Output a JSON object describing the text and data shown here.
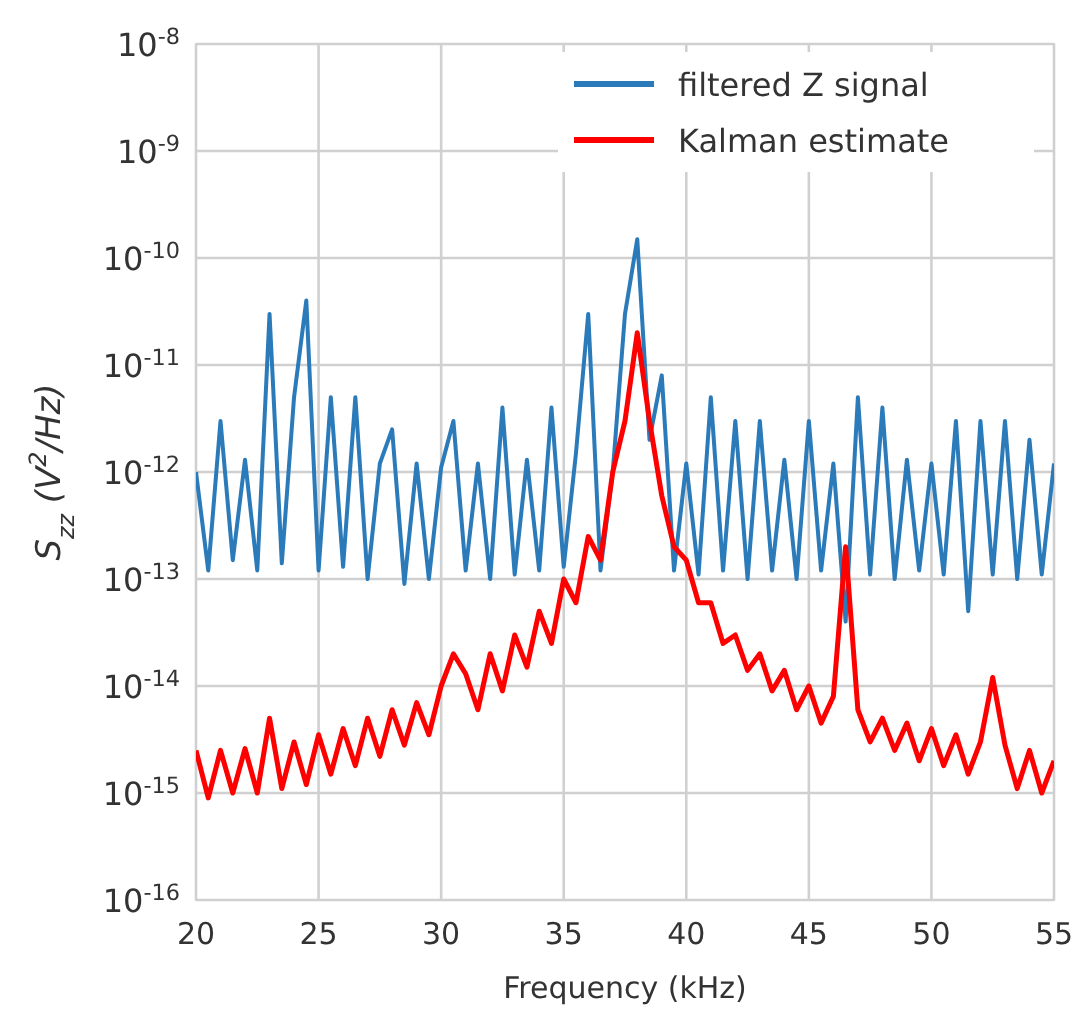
{
  "chart_data": {
    "type": "line",
    "xlabel": "Frequency (kHz)",
    "ylabel": "S$_{zz}$ (V$^{2}$/Hz)",
    "log": "y",
    "grid": true,
    "legend": "top right",
    "line_style": "solid",
    "marker": "none",
    "x": [
      20,
      20.5,
      21,
      21.5,
      22,
      22.5,
      23,
      23.5,
      24,
      24.5,
      25,
      25.5,
      26,
      26.5,
      27,
      27.5,
      28,
      28.5,
      29,
      29.5,
      30,
      30.5,
      31,
      31.5,
      32,
      32.5,
      33,
      33.5,
      34,
      34.5,
      35,
      35.5,
      36,
      36.5,
      37,
      37.5,
      38,
      38.5,
      39,
      39.5,
      40,
      40.5,
      41,
      41.5,
      42,
      42.5,
      43,
      43.5,
      44,
      44.5,
      45,
      45.5,
      46,
      46.5,
      47,
      47.5,
      48,
      48.5,
      49,
      49.5,
      50,
      50.5,
      51,
      51.5,
      52,
      52.5,
      53,
      53.5,
      54,
      54.5,
      55
    ],
    "xlim": [
      20,
      55
    ],
    "xticks": [
      20,
      25,
      30,
      35,
      40,
      45,
      50,
      55
    ],
    "ylim": [
      1e-16,
      1e-08
    ],
    "yticks": [
      {
        "value": 1e-16,
        "label": "10$^{-16}$"
      },
      {
        "value": 1e-15,
        "label": "10$^{-15}$"
      },
      {
        "value": 1e-14,
        "label": "10$^{-14}$"
      },
      {
        "value": 1e-13,
        "label": "10$^{-13}$"
      },
      {
        "value": 1e-12,
        "label": "10$^{-12}$"
      },
      {
        "value": 1e-11,
        "label": "10$^{-11}$"
      },
      {
        "value": 1e-10,
        "label": "10$^{-10}$"
      },
      {
        "value": 1e-09,
        "label": "10$^{-9}$"
      },
      {
        "value": 1e-08,
        "label": "10$^{-8}$"
      }
    ],
    "series": [
      {
        "name": "filtered Z signal",
        "color": "#2b7bba",
        "values": [
          1e-12,
          1.2e-13,
          3e-12,
          1.5e-13,
          1.3e-12,
          1.2e-13,
          3e-11,
          1.4e-13,
          5e-12,
          4e-11,
          1.2e-13,
          5e-12,
          1.3e-13,
          5e-12,
          1e-13,
          1.2e-12,
          2.5e-12,
          9e-14,
          1.2e-12,
          1e-13,
          1.1e-12,
          3e-12,
          1.2e-13,
          1.2e-12,
          1e-13,
          4e-12,
          1.1e-13,
          1.3e-12,
          1.2e-13,
          4e-12,
          1.3e-13,
          1.5e-12,
          3e-11,
          1.2e-13,
          1e-12,
          3e-11,
          1.5e-10,
          2e-12,
          8e-12,
          1.2e-13,
          1.2e-12,
          1.1e-13,
          5e-12,
          1.2e-13,
          3e-12,
          1e-13,
          3e-12,
          1.2e-13,
          1.3e-12,
          1e-13,
          3e-12,
          1.2e-13,
          1.2e-12,
          4e-14,
          5e-12,
          1.1e-13,
          4e-12,
          1e-13,
          1.3e-12,
          1.2e-13,
          1.2e-12,
          1.1e-13,
          3e-12,
          5e-14,
          3e-12,
          1.1e-13,
          3e-12,
          1e-13,
          2e-12,
          1.1e-13,
          1.2e-12
        ]
      },
      {
        "name": "Kalman estimate",
        "color": "#ff0000",
        "values": [
          2.5e-15,
          9e-16,
          2.5e-15,
          1e-15,
          2.6e-15,
          1e-15,
          5e-15,
          1.1e-15,
          3e-15,
          1.2e-15,
          3.5e-15,
          1.5e-15,
          4e-15,
          1.8e-15,
          5e-15,
          2.2e-15,
          6e-15,
          2.8e-15,
          7e-15,
          3.5e-15,
          1e-14,
          2e-14,
          1.3e-14,
          6e-15,
          2e-14,
          9e-15,
          3e-14,
          1.5e-14,
          5e-14,
          2.5e-14,
          1e-13,
          6e-14,
          2.5e-13,
          1.5e-13,
          1e-12,
          3e-12,
          2e-11,
          3e-12,
          6e-13,
          2e-13,
          1.5e-13,
          6e-14,
          6e-14,
          2.5e-14,
          3e-14,
          1.4e-14,
          2e-14,
          9e-15,
          1.4e-14,
          6e-15,
          1e-14,
          4.5e-15,
          8e-15,
          2e-13,
          6e-15,
          3e-15,
          5e-15,
          2.5e-15,
          4.5e-15,
          2e-15,
          4e-15,
          1.8e-15,
          3.5e-15,
          1.5e-15,
          3e-15,
          1.2e-14,
          2.8e-15,
          1.1e-15,
          2.5e-15,
          1e-15,
          2e-15
        ]
      }
    ]
  }
}
